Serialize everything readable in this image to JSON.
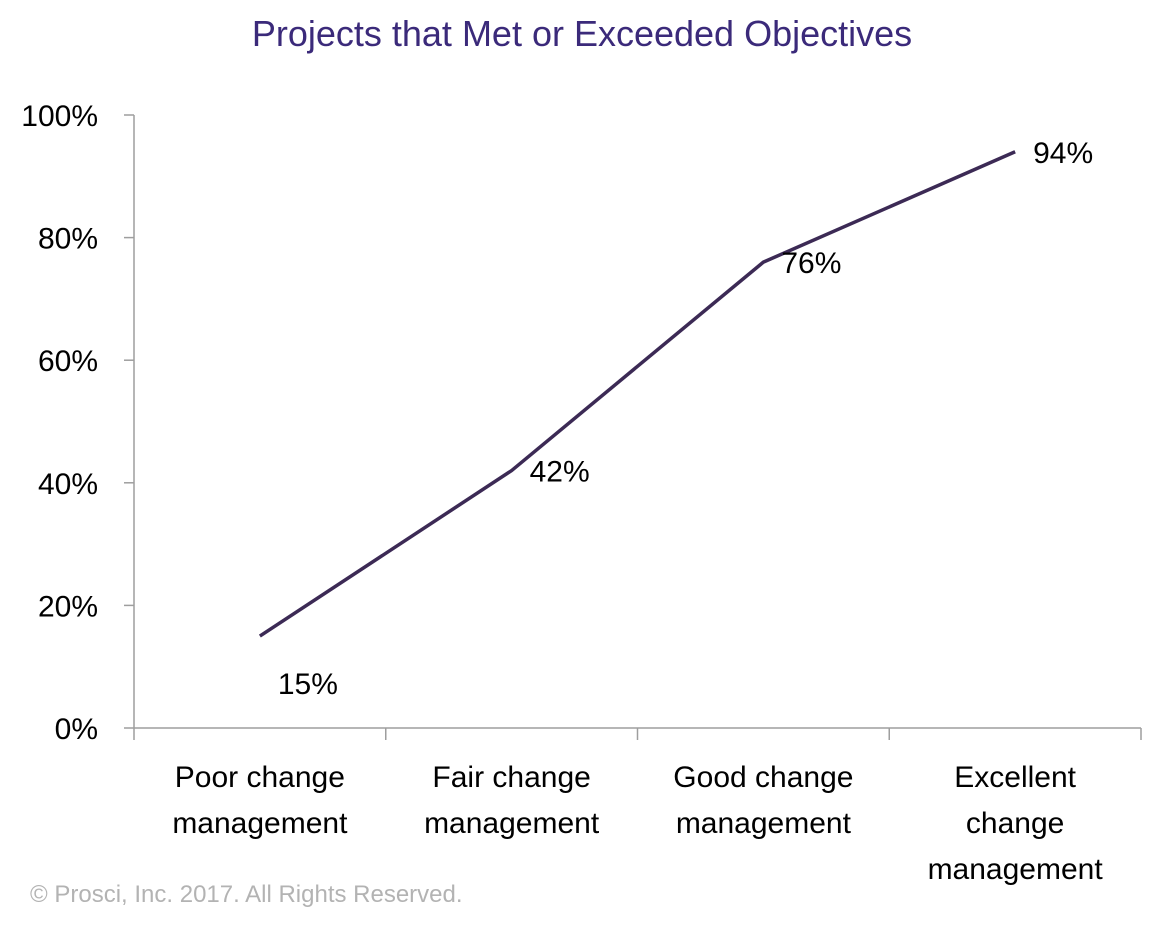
{
  "chart_data": {
    "type": "line",
    "title": "Projects that Met or Exceeded Objectives",
    "categories": [
      [
        "Poor change",
        "management"
      ],
      [
        "Fair change",
        "management"
      ],
      [
        "Good change",
        "management"
      ],
      [
        "Excellent",
        "change",
        "management"
      ]
    ],
    "series": [
      {
        "name": "Projects that Met or Exceeded Objectives",
        "values": [
          15,
          42,
          76,
          94
        ],
        "labels": [
          "15%",
          "42%",
          "76%",
          "94%"
        ]
      }
    ],
    "ylim": [
      0,
      100
    ],
    "yticks": [
      0,
      20,
      40,
      60,
      80,
      100
    ],
    "ytick_labels": [
      "0%",
      "20%",
      "40%",
      "60%",
      "80%",
      "100%"
    ],
    "xlabel": "",
    "ylabel": "",
    "grid": false,
    "legend": "none",
    "line_color": "#3c2a55",
    "axis_color": "#9e9e9e"
  },
  "footer": {
    "copyright": "© Prosci, Inc. 2017. All Rights Reserved."
  }
}
